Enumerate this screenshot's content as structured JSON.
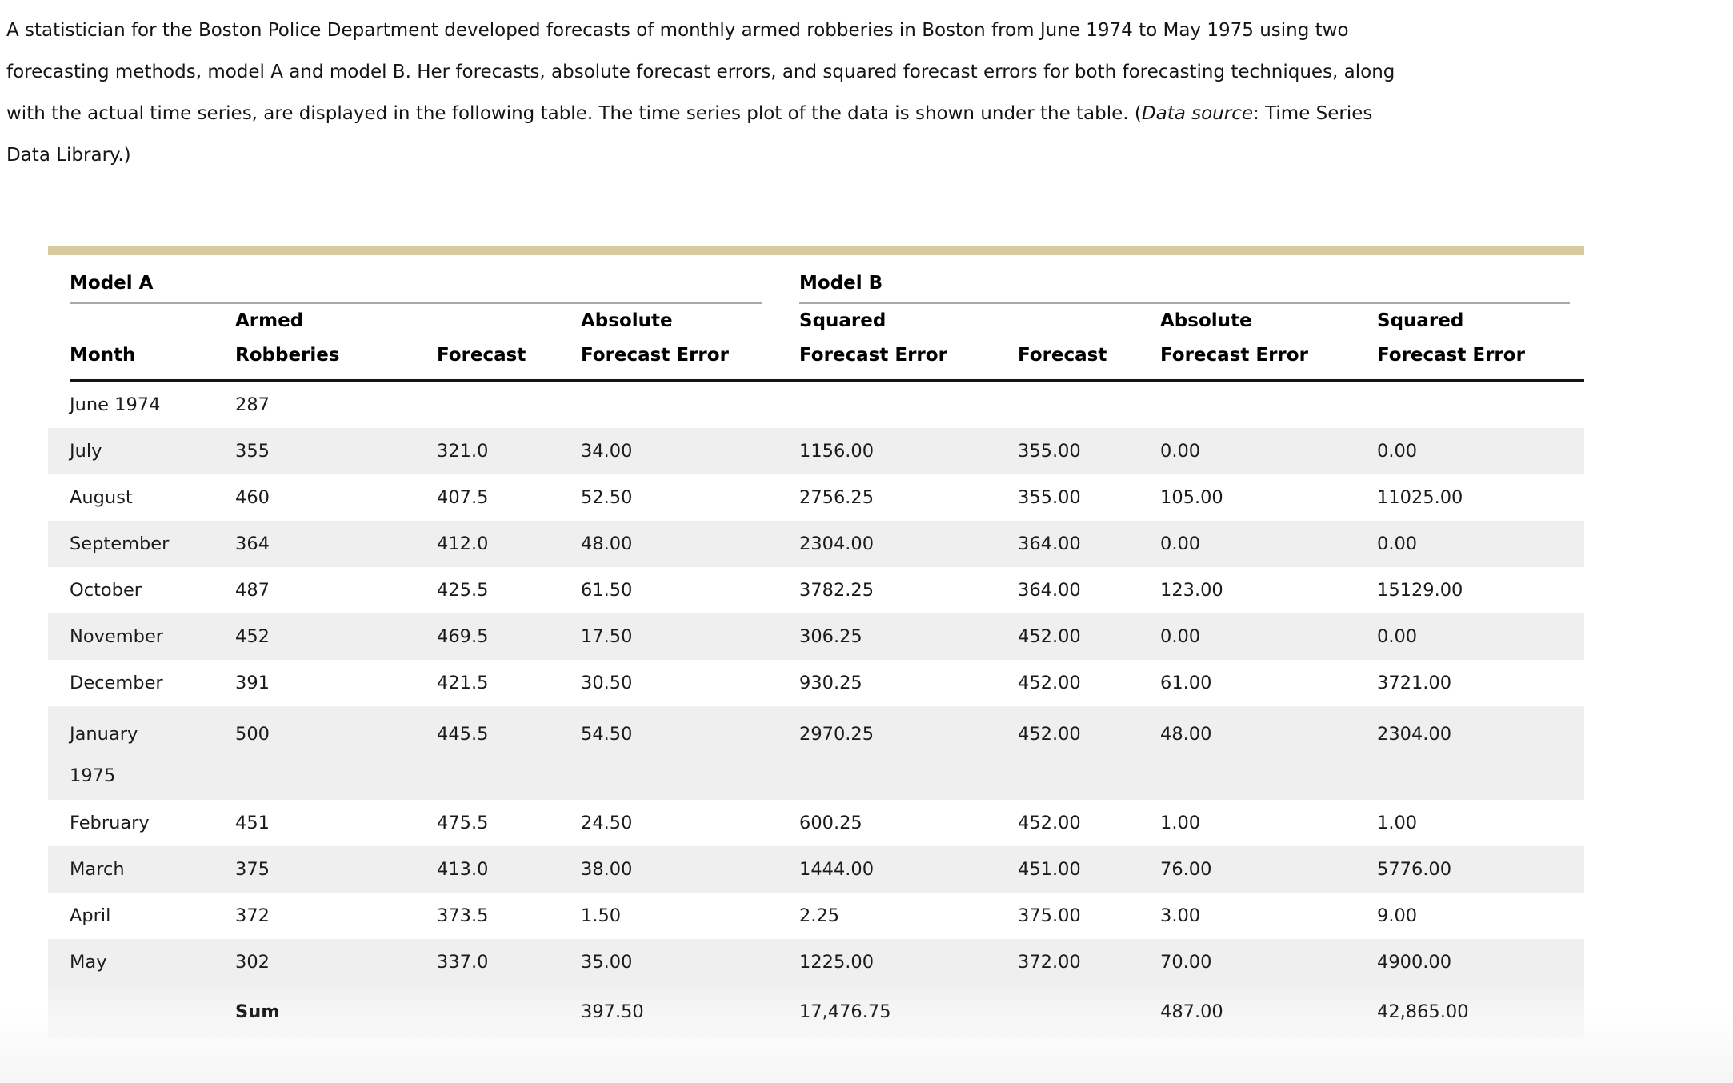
{
  "intro": {
    "line1": "A statistician for the Boston Police Department developed forecasts of monthly armed robberies in Boston from June 1974 to May 1975 using two",
    "line2": "forecasting methods, model A and model B. Her forecasts, absolute forecast errors, and squared forecast errors for both forecasting techniques, along",
    "line3_pre": "with the actual time series, are displayed in the following table. The time series plot of the data is shown under the table. (",
    "line3_italic": "Data source",
    "line3_post": ": Time Series",
    "line4": "Data Library.)"
  },
  "colors": {
    "accent_bar": "#d8caa0",
    "row_stripe": "#efefef",
    "group_rule": "#a9a9a9",
    "header_rule": "#151515"
  },
  "table": {
    "group_headers": {
      "model_a": "Model A",
      "model_b": "Model B"
    },
    "column_headers": {
      "month": "Month",
      "armed_line1": "Armed",
      "armed_line2": "Robberies",
      "forecast_a": "Forecast",
      "abs_a_line1": "Absolute",
      "abs_a_line2": "Forecast Error",
      "sq_a_line1": "Squared",
      "sq_a_line2": "Forecast Error",
      "forecast_b": "Forecast",
      "abs_b_line1": "Absolute",
      "abs_b_line2": "Forecast Error",
      "sq_b_line1": "Squared",
      "sq_b_line2": "Forecast Error"
    },
    "rows": [
      {
        "month": "June 1974",
        "armed": "287",
        "forecast_a": "",
        "abs_a": "",
        "sq_a": "",
        "forecast_b": "",
        "abs_b": "",
        "sq_b": ""
      },
      {
        "month": "July",
        "armed": "355",
        "forecast_a": "321.0",
        "abs_a": "34.00",
        "sq_a": "1156.00",
        "forecast_b": "355.00",
        "abs_b": "0.00",
        "sq_b": "0.00"
      },
      {
        "month": "August",
        "armed": "460",
        "forecast_a": "407.5",
        "abs_a": "52.50",
        "sq_a": "2756.25",
        "forecast_b": "355.00",
        "abs_b": "105.00",
        "sq_b": "11025.00"
      },
      {
        "month": "September",
        "armed": "364",
        "forecast_a": "412.0",
        "abs_a": "48.00",
        "sq_a": "2304.00",
        "forecast_b": "364.00",
        "abs_b": "0.00",
        "sq_b": "0.00"
      },
      {
        "month": "October",
        "armed": "487",
        "forecast_a": "425.5",
        "abs_a": "61.50",
        "sq_a": "3782.25",
        "forecast_b": "364.00",
        "abs_b": "123.00",
        "sq_b": "15129.00"
      },
      {
        "month": "November",
        "armed": "452",
        "forecast_a": "469.5",
        "abs_a": "17.50",
        "sq_a": "306.25",
        "forecast_b": "452.00",
        "abs_b": "0.00",
        "sq_b": "0.00"
      },
      {
        "month": "December",
        "armed": "391",
        "forecast_a": "421.5",
        "abs_a": "30.50",
        "sq_a": "930.25",
        "forecast_b": "452.00",
        "abs_b": "61.00",
        "sq_b": "3721.00"
      },
      {
        "month": "January",
        "month_line2": "1975",
        "armed": "500",
        "forecast_a": "445.5",
        "abs_a": "54.50",
        "sq_a": "2970.25",
        "forecast_b": "452.00",
        "abs_b": "48.00",
        "sq_b": "2304.00"
      },
      {
        "month": "February",
        "armed": "451",
        "forecast_a": "475.5",
        "abs_a": "24.50",
        "sq_a": "600.25",
        "forecast_b": "452.00",
        "abs_b": "1.00",
        "sq_b": "1.00"
      },
      {
        "month": "March",
        "armed": "375",
        "forecast_a": "413.0",
        "abs_a": "38.00",
        "sq_a": "1444.00",
        "forecast_b": "451.00",
        "abs_b": "76.00",
        "sq_b": "5776.00"
      },
      {
        "month": "April",
        "armed": "372",
        "forecast_a": "373.5",
        "abs_a": "1.50",
        "sq_a": "2.25",
        "forecast_b": "375.00",
        "abs_b": "3.00",
        "sq_b": "9.00"
      },
      {
        "month": "May",
        "armed": "302",
        "forecast_a": "337.0",
        "abs_a": "35.00",
        "sq_a": "1225.00",
        "forecast_b": "372.00",
        "abs_b": "70.00",
        "sq_b": "4900.00"
      }
    ],
    "sum_row": {
      "label": "Sum",
      "abs_a": "397.50",
      "sq_a": "17,476.75",
      "abs_b": "487.00",
      "sq_b": "42,865.00"
    }
  }
}
